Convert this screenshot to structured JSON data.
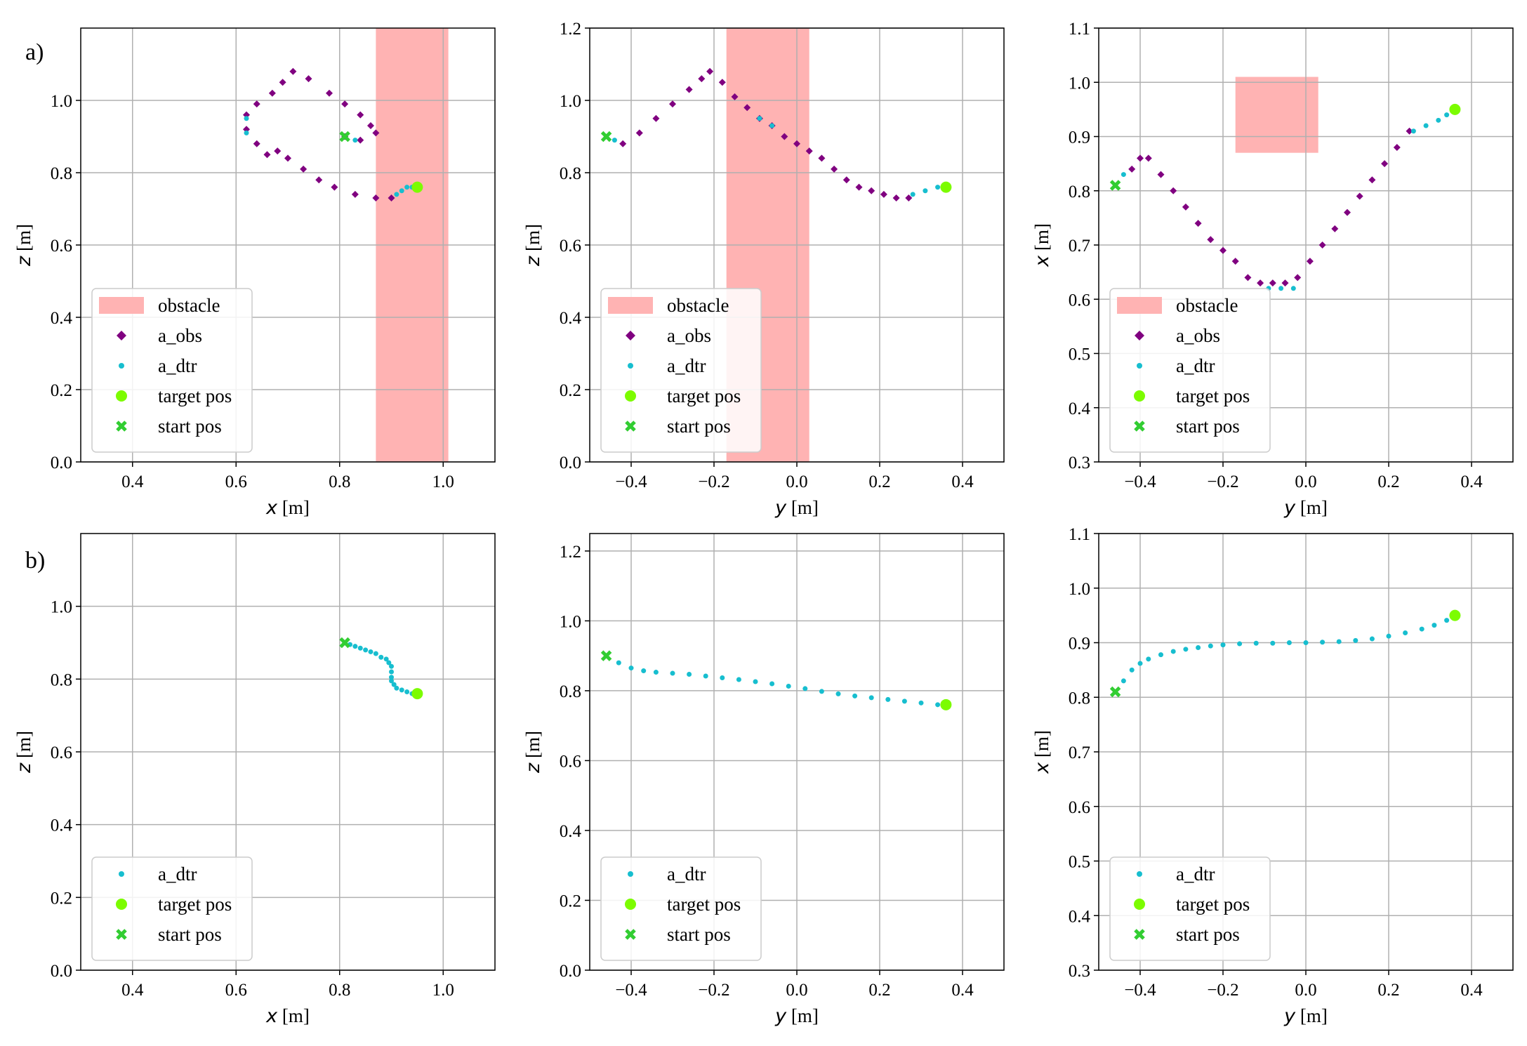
{
  "figure": {
    "row_labels": [
      "a)",
      "b)"
    ],
    "colors": {
      "obstacle": "#ffb3b3",
      "a_obs": "#800080",
      "a_dtr": "#17becf",
      "target": "#7cfc00",
      "start": "#32cd32",
      "grid": "#b0b0b0"
    }
  },
  "chart_data": [
    {
      "id": "a-xz",
      "type": "scatter",
      "row": "a",
      "xlabel_var": "x",
      "xlabel_unit": "[m]",
      "ylabel_var": "z",
      "ylabel_unit": "[m]",
      "xlim": [
        0.3,
        1.1
      ],
      "ylim": [
        0.0,
        1.2
      ],
      "xticks": [
        0.4,
        0.6,
        0.8,
        1.0
      ],
      "yticks": [
        0.0,
        0.2,
        0.4,
        0.6,
        0.8,
        1.0
      ],
      "obstacle": {
        "x": [
          0.87,
          1.01
        ],
        "y": [
          0.0,
          1.2
        ]
      },
      "series": [
        {
          "name": "a_obs",
          "role": "a_obs",
          "points": [
            [
              0.81,
              0.9
            ],
            [
              0.84,
              0.89
            ],
            [
              0.87,
              0.91
            ],
            [
              0.86,
              0.93
            ],
            [
              0.84,
              0.96
            ],
            [
              0.81,
              0.99
            ],
            [
              0.78,
              1.02
            ],
            [
              0.74,
              1.06
            ],
            [
              0.71,
              1.08
            ],
            [
              0.69,
              1.05
            ],
            [
              0.67,
              1.02
            ],
            [
              0.64,
              0.99
            ],
            [
              0.62,
              0.96
            ],
            [
              0.62,
              0.92
            ],
            [
              0.64,
              0.88
            ],
            [
              0.66,
              0.85
            ],
            [
              0.68,
              0.86
            ],
            [
              0.7,
              0.84
            ],
            [
              0.73,
              0.81
            ],
            [
              0.76,
              0.78
            ],
            [
              0.79,
              0.76
            ],
            [
              0.83,
              0.74
            ],
            [
              0.87,
              0.73
            ],
            [
              0.9,
              0.73
            ]
          ]
        },
        {
          "name": "a_dtr",
          "role": "a_dtr",
          "points": [
            [
              0.81,
              0.9
            ],
            [
              0.83,
              0.89
            ],
            [
              0.62,
              0.95
            ],
            [
              0.62,
              0.91
            ],
            [
              0.91,
              0.74
            ],
            [
              0.92,
              0.75
            ],
            [
              0.93,
              0.76
            ],
            [
              0.94,
              0.76
            ]
          ]
        },
        {
          "name": "target pos",
          "role": "target",
          "points": [
            [
              0.95,
              0.76
            ]
          ]
        },
        {
          "name": "start pos",
          "role": "start",
          "points": [
            [
              0.81,
              0.9
            ]
          ]
        }
      ],
      "legend": [
        "obstacle",
        "a_obs",
        "a_dtr",
        "target pos",
        "start pos"
      ],
      "legend_loc": "lower-left"
    },
    {
      "id": "a-yz",
      "type": "scatter",
      "row": "a",
      "xlabel_var": "y",
      "xlabel_unit": "[m]",
      "ylabel_var": "z",
      "ylabel_unit": "[m]",
      "xlim": [
        -0.5,
        0.5
      ],
      "ylim": [
        0.0,
        1.2
      ],
      "xticks": [
        -0.4,
        -0.2,
        0.0,
        0.2,
        0.4
      ],
      "yticks": [
        0.0,
        0.2,
        0.4,
        0.6,
        0.8,
        1.0,
        1.2
      ],
      "obstacle": {
        "x": [
          -0.17,
          0.03
        ],
        "y": [
          0.0,
          1.2
        ]
      },
      "series": [
        {
          "name": "a_obs",
          "role": "a_obs",
          "points": [
            [
              -0.42,
              0.88
            ],
            [
              -0.38,
              0.91
            ],
            [
              -0.34,
              0.95
            ],
            [
              -0.3,
              0.99
            ],
            [
              -0.26,
              1.03
            ],
            [
              -0.23,
              1.06
            ],
            [
              -0.21,
              1.08
            ],
            [
              -0.18,
              1.05
            ],
            [
              -0.15,
              1.01
            ],
            [
              -0.12,
              0.98
            ],
            [
              -0.09,
              0.95
            ],
            [
              -0.06,
              0.93
            ],
            [
              -0.03,
              0.9
            ],
            [
              0.0,
              0.88
            ],
            [
              0.03,
              0.86
            ],
            [
              0.06,
              0.84
            ],
            [
              0.09,
              0.81
            ],
            [
              0.12,
              0.78
            ],
            [
              0.15,
              0.76
            ],
            [
              0.18,
              0.75
            ],
            [
              0.21,
              0.74
            ],
            [
              0.24,
              0.73
            ],
            [
              0.27,
              0.73
            ]
          ]
        },
        {
          "name": "a_dtr",
          "role": "a_dtr",
          "points": [
            [
              -0.46,
              0.9
            ],
            [
              -0.44,
              0.89
            ],
            [
              -0.09,
              0.95
            ],
            [
              -0.06,
              0.93
            ],
            [
              0.28,
              0.74
            ],
            [
              0.31,
              0.75
            ],
            [
              0.34,
              0.76
            ]
          ]
        },
        {
          "name": "target pos",
          "role": "target",
          "points": [
            [
              0.36,
              0.76
            ]
          ]
        },
        {
          "name": "start pos",
          "role": "start",
          "points": [
            [
              -0.46,
              0.9
            ]
          ]
        }
      ],
      "legend": [
        "obstacle",
        "a_obs",
        "a_dtr",
        "target pos",
        "start pos"
      ],
      "legend_loc": "lower-left"
    },
    {
      "id": "a-yx",
      "type": "scatter",
      "row": "a",
      "xlabel_var": "y",
      "xlabel_unit": "[m]",
      "ylabel_var": "x",
      "ylabel_unit": "[m]",
      "xlim": [
        -0.5,
        0.5
      ],
      "ylim": [
        0.3,
        1.1
      ],
      "xticks": [
        -0.4,
        -0.2,
        0.0,
        0.2,
        0.4
      ],
      "yticks": [
        0.3,
        0.4,
        0.5,
        0.6,
        0.7,
        0.8,
        0.9,
        1.0,
        1.1
      ],
      "obstacle": {
        "x": [
          -0.17,
          0.03
        ],
        "y": [
          0.87,
          1.01
        ]
      },
      "series": [
        {
          "name": "a_obs",
          "role": "a_obs",
          "points": [
            [
              -0.42,
              0.84
            ],
            [
              -0.4,
              0.86
            ],
            [
              -0.38,
              0.86
            ],
            [
              -0.35,
              0.83
            ],
            [
              -0.32,
              0.8
            ],
            [
              -0.29,
              0.77
            ],
            [
              -0.26,
              0.74
            ],
            [
              -0.23,
              0.71
            ],
            [
              -0.2,
              0.69
            ],
            [
              -0.17,
              0.67
            ],
            [
              -0.14,
              0.64
            ],
            [
              -0.11,
              0.63
            ],
            [
              -0.08,
              0.63
            ],
            [
              -0.05,
              0.63
            ],
            [
              -0.02,
              0.64
            ],
            [
              0.01,
              0.67
            ],
            [
              0.04,
              0.7
            ],
            [
              0.07,
              0.73
            ],
            [
              0.1,
              0.76
            ],
            [
              0.13,
              0.79
            ],
            [
              0.16,
              0.82
            ],
            [
              0.19,
              0.85
            ],
            [
              0.22,
              0.88
            ],
            [
              0.25,
              0.91
            ]
          ]
        },
        {
          "name": "a_dtr",
          "role": "a_dtr",
          "points": [
            [
              -0.46,
              0.81
            ],
            [
              -0.44,
              0.83
            ],
            [
              -0.09,
              0.62
            ],
            [
              -0.06,
              0.62
            ],
            [
              -0.03,
              0.62
            ],
            [
              0.26,
              0.91
            ],
            [
              0.29,
              0.92
            ],
            [
              0.32,
              0.93
            ],
            [
              0.34,
              0.94
            ]
          ]
        },
        {
          "name": "target pos",
          "role": "target",
          "points": [
            [
              0.36,
              0.95
            ]
          ]
        },
        {
          "name": "start pos",
          "role": "start",
          "points": [
            [
              -0.46,
              0.81
            ]
          ]
        }
      ],
      "legend": [
        "obstacle",
        "a_obs",
        "a_dtr",
        "target pos",
        "start pos"
      ],
      "legend_loc": "lower-left"
    },
    {
      "id": "b-xz",
      "type": "scatter",
      "row": "b",
      "xlabel_var": "x",
      "xlabel_unit": "[m]",
      "ylabel_var": "z",
      "ylabel_unit": "[m]",
      "xlim": [
        0.3,
        1.1
      ],
      "ylim": [
        0.0,
        1.2
      ],
      "xticks": [
        0.4,
        0.6,
        0.8,
        1.0
      ],
      "yticks": [
        0.0,
        0.2,
        0.4,
        0.6,
        0.8,
        1.0
      ],
      "obstacle": null,
      "series": [
        {
          "name": "a_dtr",
          "role": "a_dtr",
          "points": [
            [
              0.81,
              0.9
            ],
            [
              0.82,
              0.895
            ],
            [
              0.83,
              0.89
            ],
            [
              0.84,
              0.885
            ],
            [
              0.85,
              0.88
            ],
            [
              0.86,
              0.875
            ],
            [
              0.87,
              0.87
            ],
            [
              0.88,
              0.86
            ],
            [
              0.89,
              0.855
            ],
            [
              0.895,
              0.845
            ],
            [
              0.9,
              0.835
            ],
            [
              0.9,
              0.82
            ],
            [
              0.9,
              0.805
            ],
            [
              0.9,
              0.795
            ],
            [
              0.905,
              0.785
            ],
            [
              0.91,
              0.775
            ],
            [
              0.92,
              0.77
            ],
            [
              0.93,
              0.765
            ],
            [
              0.94,
              0.76
            ]
          ]
        },
        {
          "name": "target pos",
          "role": "target",
          "points": [
            [
              0.95,
              0.76
            ]
          ]
        },
        {
          "name": "start pos",
          "role": "start",
          "points": [
            [
              0.81,
              0.9
            ]
          ]
        }
      ],
      "legend": [
        "a_dtr",
        "target pos",
        "start pos"
      ],
      "legend_loc": "lower-left"
    },
    {
      "id": "b-yz",
      "type": "scatter",
      "row": "b",
      "xlabel_var": "y",
      "xlabel_unit": "[m]",
      "ylabel_var": "z",
      "ylabel_unit": "[m]",
      "xlim": [
        -0.5,
        0.5
      ],
      "ylim": [
        0.0,
        1.25
      ],
      "xticks": [
        -0.4,
        -0.2,
        0.0,
        0.2,
        0.4
      ],
      "yticks": [
        0.0,
        0.2,
        0.4,
        0.6,
        0.8,
        1.0,
        1.2
      ],
      "obstacle": null,
      "series": [
        {
          "name": "a_dtr",
          "role": "a_dtr",
          "points": [
            [
              -0.46,
              0.9
            ],
            [
              -0.43,
              0.88
            ],
            [
              -0.4,
              0.865
            ],
            [
              -0.37,
              0.857
            ],
            [
              -0.34,
              0.853
            ],
            [
              -0.3,
              0.85
            ],
            [
              -0.26,
              0.847
            ],
            [
              -0.22,
              0.842
            ],
            [
              -0.18,
              0.837
            ],
            [
              -0.14,
              0.832
            ],
            [
              -0.1,
              0.826
            ],
            [
              -0.06,
              0.82
            ],
            [
              -0.02,
              0.813
            ],
            [
              0.02,
              0.806
            ],
            [
              0.06,
              0.798
            ],
            [
              0.1,
              0.791
            ],
            [
              0.14,
              0.785
            ],
            [
              0.18,
              0.78
            ],
            [
              0.22,
              0.775
            ],
            [
              0.26,
              0.77
            ],
            [
              0.3,
              0.765
            ],
            [
              0.34,
              0.76
            ]
          ]
        },
        {
          "name": "target pos",
          "role": "target",
          "points": [
            [
              0.36,
              0.76
            ]
          ]
        },
        {
          "name": "start pos",
          "role": "start",
          "points": [
            [
              -0.46,
              0.9
            ]
          ]
        }
      ],
      "legend": [
        "a_dtr",
        "target pos",
        "start pos"
      ],
      "legend_loc": "lower-left"
    },
    {
      "id": "b-yx",
      "type": "scatter",
      "row": "b",
      "xlabel_var": "y",
      "xlabel_unit": "[m]",
      "ylabel_var": "x",
      "ylabel_unit": "[m]",
      "xlim": [
        -0.5,
        0.5
      ],
      "ylim": [
        0.3,
        1.1
      ],
      "xticks": [
        -0.4,
        -0.2,
        0.0,
        0.2,
        0.4
      ],
      "yticks": [
        0.3,
        0.4,
        0.5,
        0.6,
        0.7,
        0.8,
        0.9,
        1.0,
        1.1
      ],
      "obstacle": null,
      "series": [
        {
          "name": "a_dtr",
          "role": "a_dtr",
          "points": [
            [
              -0.46,
              0.81
            ],
            [
              -0.44,
              0.83
            ],
            [
              -0.42,
              0.85
            ],
            [
              -0.4,
              0.862
            ],
            [
              -0.38,
              0.87
            ],
            [
              -0.35,
              0.878
            ],
            [
              -0.32,
              0.884
            ],
            [
              -0.29,
              0.888
            ],
            [
              -0.26,
              0.891
            ],
            [
              -0.23,
              0.894
            ],
            [
              -0.2,
              0.896
            ],
            [
              -0.16,
              0.898
            ],
            [
              -0.12,
              0.899
            ],
            [
              -0.08,
              0.899
            ],
            [
              -0.04,
              0.9
            ],
            [
              0.0,
              0.9
            ],
            [
              0.04,
              0.901
            ],
            [
              0.08,
              0.902
            ],
            [
              0.12,
              0.904
            ],
            [
              0.16,
              0.907
            ],
            [
              0.2,
              0.912
            ],
            [
              0.24,
              0.918
            ],
            [
              0.28,
              0.925
            ],
            [
              0.31,
              0.932
            ],
            [
              0.34,
              0.941
            ]
          ]
        },
        {
          "name": "target pos",
          "role": "target",
          "points": [
            [
              0.36,
              0.95
            ]
          ]
        },
        {
          "name": "start pos",
          "role": "start",
          "points": [
            [
              -0.46,
              0.81
            ]
          ]
        }
      ],
      "legend": [
        "a_dtr",
        "target pos",
        "start pos"
      ],
      "legend_loc": "lower-left"
    }
  ]
}
